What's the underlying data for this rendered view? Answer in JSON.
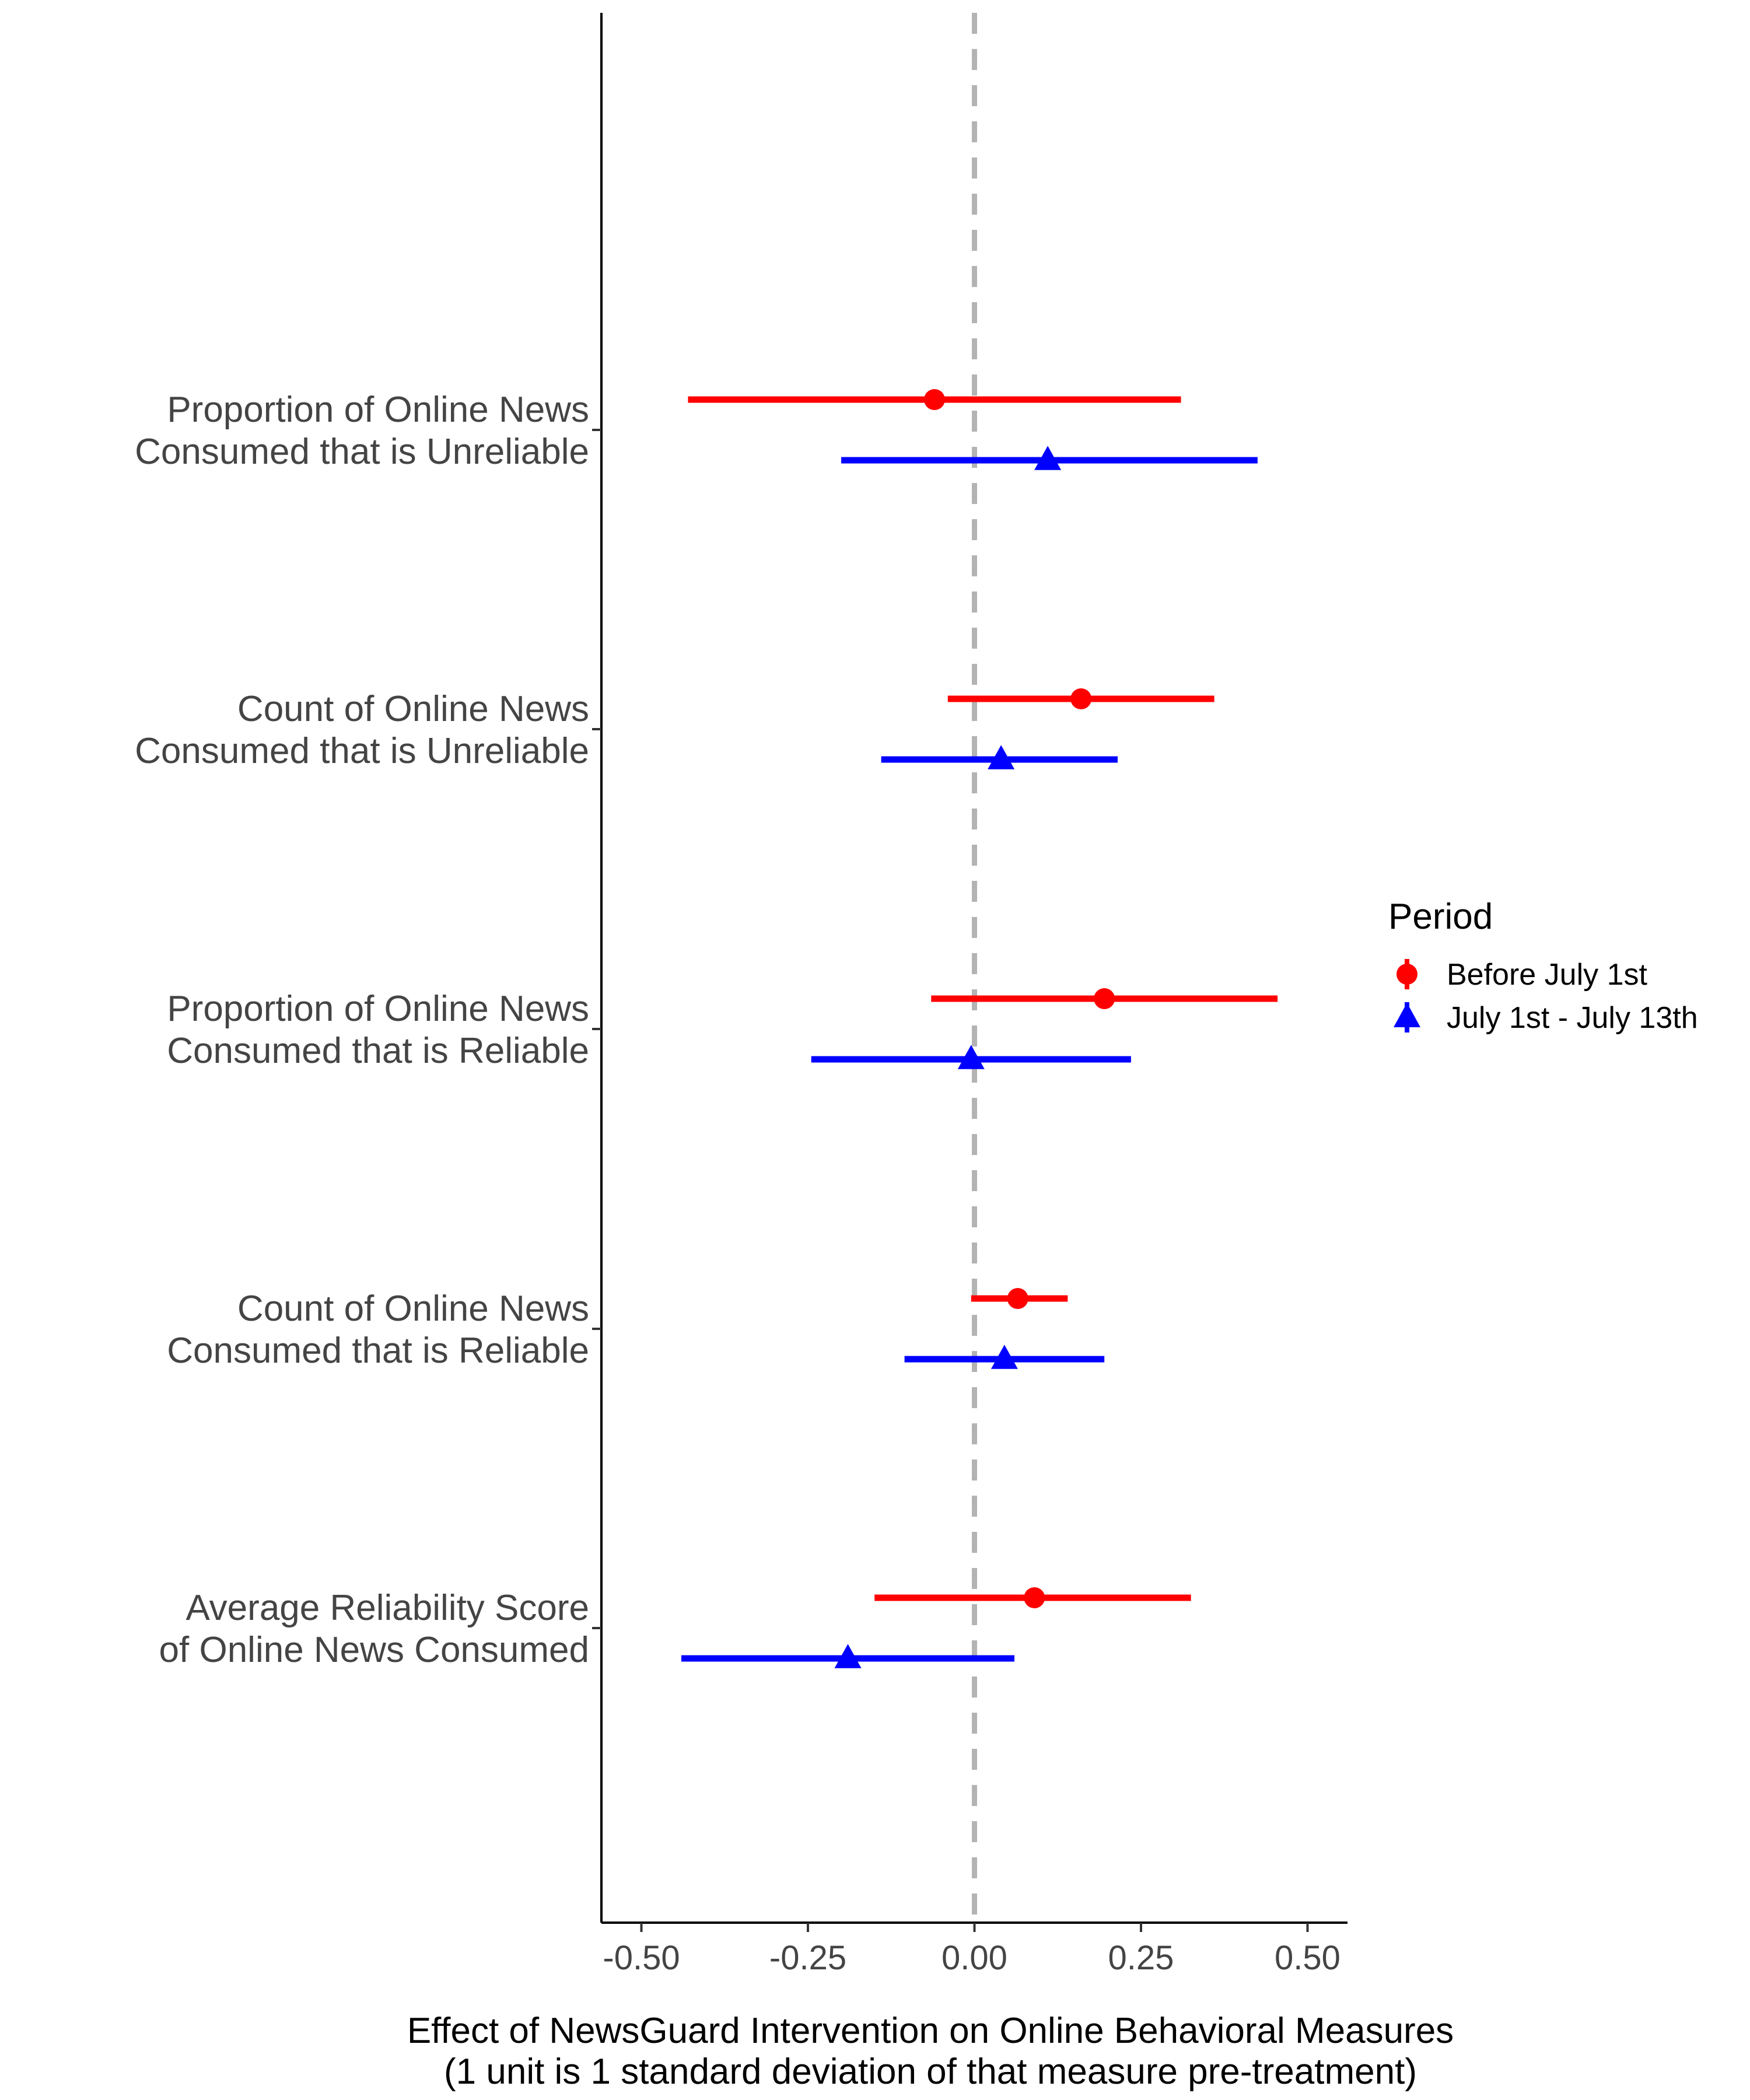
{
  "chart_data": {
    "type": "scatter",
    "subtype": "coefficient-plot-with-confidence-intervals",
    "xlabel": "Effect of NewsGuard Intervention on Online Behavioral Measures",
    "xlabel_line2": "(1 unit is 1 standard deviation of that measure pre-treatment)",
    "ylabel": "",
    "xlim": [
      -0.56,
      0.56
    ],
    "xticks": [
      -0.5,
      -0.25,
      0.0,
      0.25,
      0.5
    ],
    "xtick_labels": [
      "-0.50",
      "-0.25",
      "0.00",
      "0.25",
      "0.50"
    ],
    "reference_line": {
      "x": 0.0,
      "style": "dashed",
      "color": "#b3b3b3"
    },
    "grid": false,
    "legend": {
      "title": "Period",
      "placement": "right"
    },
    "categories": [
      [
        "Proportion of Online News",
        "Consumed that is Unreliable"
      ],
      [
        "Count of Online News",
        "Consumed that is Unreliable"
      ],
      [
        "Proportion of Online News",
        "Consumed that is Reliable"
      ],
      [
        "Count of Online News",
        "Consumed that is Reliable"
      ],
      [
        "Average Reliability Score",
        "of Online News Consumed"
      ]
    ],
    "series": [
      {
        "name": "Before July 1st",
        "color": "#ff0000",
        "marker": "circle",
        "points": [
          {
            "estimate": -0.06,
            "lower": -0.43,
            "upper": 0.31
          },
          {
            "estimate": 0.16,
            "lower": -0.04,
            "upper": 0.36
          },
          {
            "estimate": 0.195,
            "lower": -0.065,
            "upper": 0.455
          },
          {
            "estimate": 0.065,
            "lower": -0.005,
            "upper": 0.14
          },
          {
            "estimate": 0.09,
            "lower": -0.15,
            "upper": 0.325
          }
        ]
      },
      {
        "name": "July 1st - July 13th",
        "color": "#0000ff",
        "marker": "triangle",
        "points": [
          {
            "estimate": 0.11,
            "lower": -0.2,
            "upper": 0.425
          },
          {
            "estimate": 0.04,
            "lower": -0.14,
            "upper": 0.215
          },
          {
            "estimate": -0.005,
            "lower": -0.245,
            "upper": 0.235
          },
          {
            "estimate": 0.045,
            "lower": -0.105,
            "upper": 0.195
          },
          {
            "estimate": -0.19,
            "lower": -0.44,
            "upper": 0.06
          }
        ]
      }
    ]
  }
}
